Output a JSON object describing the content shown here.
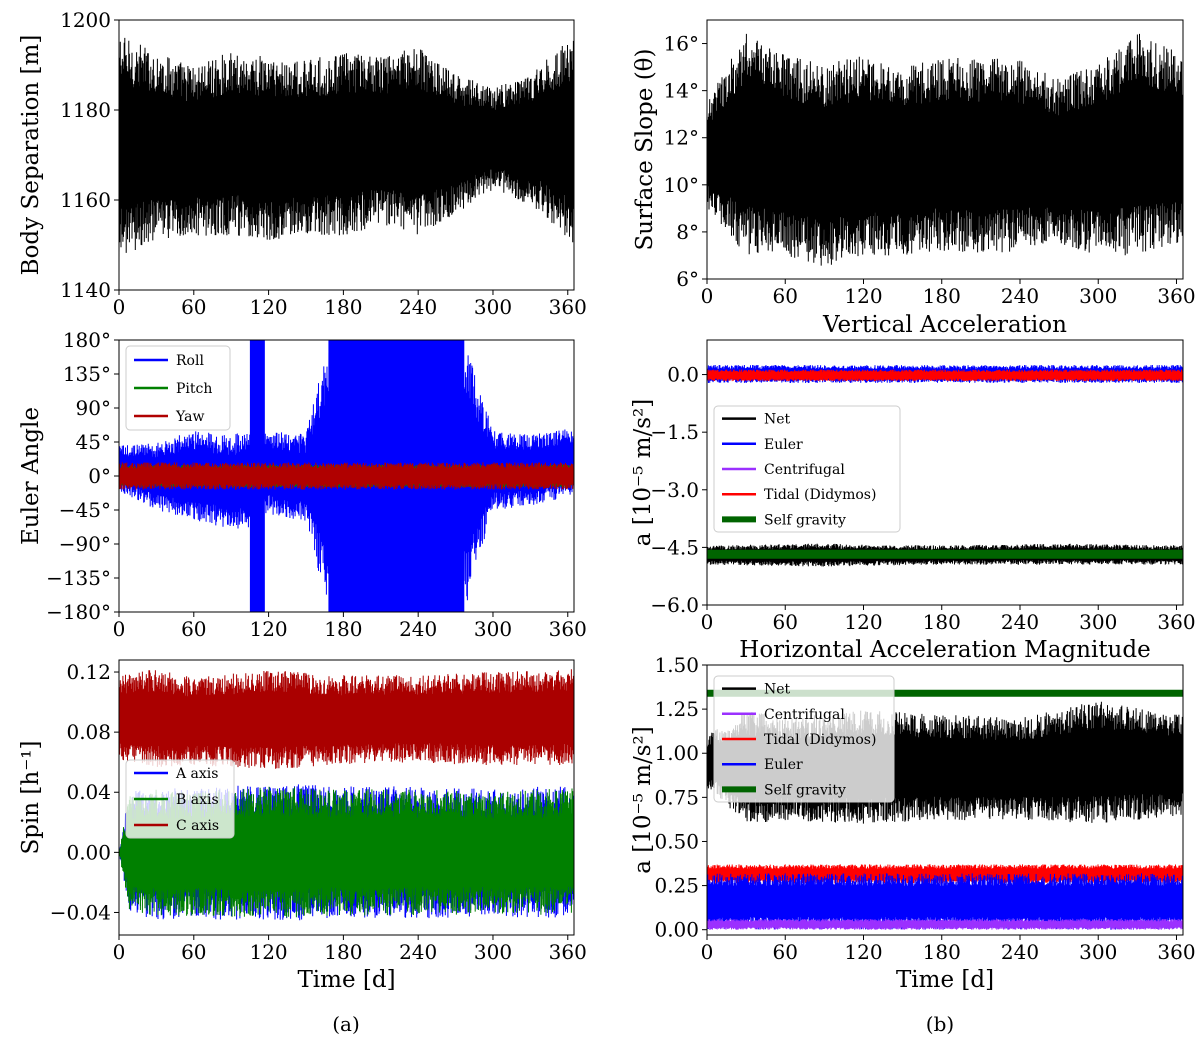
{
  "figure": {
    "captions": [
      "(a)",
      "(b)"
    ]
  },
  "chart_data": [
    {
      "id": "p1",
      "type": "line",
      "panel": "a",
      "title": "",
      "xlabel": "",
      "ylabel": "Body Separation [m]",
      "xlim": [
        0,
        365
      ],
      "ylim": [
        1140,
        1200
      ],
      "xticks": [
        0,
        60,
        120,
        180,
        240,
        300,
        360
      ],
      "xtick_labels": [
        "0",
        "60",
        "120",
        "180",
        "240",
        "300",
        "360"
      ],
      "yticks": [
        1140,
        1160,
        1180,
        1200
      ],
      "ytick_labels": [
        "1140",
        "1160",
        "1180",
        "1200"
      ],
      "legend": null,
      "series": [
        {
          "color": "#000000",
          "style": "band",
          "envelope": {
            "x": [
              0,
              30,
              60,
              90,
              120,
              150,
              180,
              210,
              240,
              270,
              300,
              330,
              365
            ],
            "upper": [
              1197,
              1193,
              1190,
              1193,
              1192,
              1191,
              1193,
              1192,
              1194,
              1188,
              1185,
              1188,
              1197
            ],
            "lower": [
              1147,
              1151,
              1152,
              1152,
              1151,
              1152,
              1152,
              1154,
              1152,
              1157,
              1162,
              1159,
              1150
            ]
          }
        }
      ]
    },
    {
      "id": "p2",
      "type": "line",
      "panel": "b",
      "title": "",
      "xlabel": "",
      "ylabel": "Surface Slope (θ)",
      "xlim": [
        0,
        365
      ],
      "ylim": [
        6,
        17
      ],
      "xticks": [
        0,
        60,
        120,
        180,
        240,
        300,
        360
      ],
      "xtick_labels": [
        "0",
        "60",
        "120",
        "180",
        "240",
        "300",
        "360"
      ],
      "yticks": [
        6,
        8,
        10,
        12,
        14,
        16
      ],
      "ytick_labels": [
        "6°",
        "8°",
        "10°",
        "12°",
        "14°",
        "16°"
      ],
      "legend": null,
      "series": [
        {
          "color": "#000000",
          "style": "band",
          "envelope": {
            "x": [
              0,
              30,
              60,
              90,
              120,
              150,
              180,
              210,
              240,
              270,
              300,
              330,
              365
            ],
            "upper": [
              13.5,
              16.5,
              15.5,
              15.2,
              15.5,
              15.0,
              15.4,
              15.4,
              15.3,
              14.5,
              15.2,
              16.5,
              15.5
            ],
            "lower": [
              9.0,
              7.0,
              7.0,
              6.5,
              7.0,
              7.0,
              7.2,
              7.0,
              7.2,
              7.5,
              7.0,
              7.0,
              7.5
            ]
          }
        }
      ]
    },
    {
      "id": "p3",
      "type": "line",
      "panel": "a",
      "title": "",
      "xlabel": "",
      "ylabel": "Euler Angle",
      "xlim": [
        0,
        365
      ],
      "ylim": [
        -180,
        180
      ],
      "xticks": [
        0,
        60,
        120,
        180,
        240,
        300,
        360
      ],
      "xtick_labels": [
        "0",
        "60",
        "120",
        "180",
        "240",
        "300",
        "360"
      ],
      "yticks": [
        -180,
        -135,
        -90,
        -45,
        0,
        45,
        90,
        135,
        180
      ],
      "ytick_labels": [
        "−180°",
        "−135°",
        "−90°",
        "−45°",
        "0°",
        "45°",
        "90°",
        "135°",
        "180°"
      ],
      "legend": {
        "position": "upper-left",
        "entries": [
          "Roll",
          "Pitch",
          "Yaw"
        ]
      },
      "series": [
        {
          "name": "Roll",
          "color": "#0000ff",
          "style": "band",
          "envelope": {
            "x": [
              0,
              30,
              60,
              90,
              105,
              120,
              150,
              168,
              200,
              240,
              277,
              300,
              330,
              365
            ],
            "upper": [
              40,
              45,
              60,
              55,
              60,
              60,
              55,
              180,
              180,
              180,
              180,
              60,
              55,
              65
            ],
            "lower": [
              -20,
              -45,
              -60,
              -70,
              -70,
              -50,
              -60,
              -180,
              -180,
              -180,
              -180,
              -45,
              -40,
              -25
            ]
          },
          "fills": [
            {
              "x0": 105,
              "x1": 117,
              "y0": -180,
              "y1": 180
            }
          ]
        },
        {
          "name": "Pitch",
          "color": "#008000",
          "style": "band",
          "envelope": {
            "x": [
              0,
              365
            ],
            "upper": [
              15,
              15
            ],
            "lower": [
              -15,
              -15
            ]
          }
        },
        {
          "name": "Yaw",
          "color": "#b00000",
          "style": "band",
          "envelope": {
            "x": [
              0,
              365
            ],
            "upper": [
              18,
              18
            ],
            "lower": [
              -18,
              -18
            ]
          }
        }
      ]
    },
    {
      "id": "p4",
      "type": "line",
      "panel": "b",
      "title": "Vertical Acceleration",
      "xlabel": "",
      "ylabel": "a [10⁻⁵ m/s²]",
      "xlim": [
        0,
        365
      ],
      "ylim": [
        -6.0,
        0.9
      ],
      "xticks": [
        0,
        60,
        120,
        180,
        240,
        300,
        360
      ],
      "xtick_labels": [
        "0",
        "60",
        "120",
        "180",
        "240",
        "300",
        "360"
      ],
      "yticks": [
        -6.0,
        -4.5,
        -3.0,
        -1.5,
        0.0
      ],
      "ytick_labels": [
        "−6.0",
        "−4.5",
        "−3.0",
        "−1.5",
        "0.0"
      ],
      "legend": {
        "position": "center-left",
        "entries": [
          "Net",
          "Euler",
          "Centrifugal",
          "Tidal (Didymos)",
          "Self gravity"
        ]
      },
      "series": [
        {
          "name": "Net",
          "color": "#000000",
          "style": "band",
          "envelope": {
            "x": [
              0,
              90,
              180,
              270,
              365
            ],
            "upper": [
              -4.45,
              -4.4,
              -4.45,
              -4.4,
              -4.45
            ],
            "lower": [
              -4.95,
              -5.0,
              -4.95,
              -4.95,
              -4.95
            ]
          }
        },
        {
          "name": "Euler",
          "color": "#0000ff",
          "style": "band",
          "envelope": {
            "x": [
              0,
              365
            ],
            "upper": [
              0.25,
              0.25
            ],
            "lower": [
              -0.22,
              -0.22
            ]
          }
        },
        {
          "name": "Centrifugal",
          "color": "#9b30ff",
          "style": "band",
          "envelope": {
            "x": [
              0,
              365
            ],
            "upper": [
              0.05,
              0.05
            ],
            "lower": [
              -0.05,
              -0.05
            ]
          }
        },
        {
          "name": "Tidal (Didymos)",
          "color": "#ff0000",
          "style": "band",
          "envelope": {
            "x": [
              0,
              365
            ],
            "upper": [
              0.13,
              0.13
            ],
            "lower": [
              -0.17,
              -0.17
            ]
          }
        },
        {
          "name": "Self gravity",
          "color": "#006400",
          "style": "line",
          "width": 9,
          "x": [
            0,
            365
          ],
          "y": [
            -4.68,
            -4.68
          ]
        }
      ]
    },
    {
      "id": "p5",
      "type": "line",
      "panel": "a",
      "title": "",
      "xlabel": "Time [d]",
      "ylabel": "Spin [h⁻¹]",
      "xlim": [
        0,
        365
      ],
      "ylim": [
        -0.055,
        0.128
      ],
      "xticks": [
        0,
        60,
        120,
        180,
        240,
        300,
        360
      ],
      "xtick_labels": [
        "0",
        "60",
        "120",
        "180",
        "240",
        "300",
        "360"
      ],
      "yticks": [
        -0.04,
        0.0,
        0.04,
        0.08,
        0.12
      ],
      "ytick_labels": [
        "−0.04",
        "0.00",
        "0.04",
        "0.08",
        "0.12"
      ],
      "legend": {
        "position": "center-left",
        "entries": [
          "A axis",
          "B axis",
          "C axis"
        ]
      },
      "series": [
        {
          "name": "C axis",
          "color": "#aa0000",
          "style": "band",
          "envelope": {
            "x": [
              0,
              30,
              60,
              120,
              180,
              240,
              300,
              365
            ],
            "upper": [
              0.118,
              0.122,
              0.116,
              0.122,
              0.118,
              0.118,
              0.12,
              0.122
            ],
            "lower": [
              0.062,
              0.056,
              0.058,
              0.055,
              0.058,
              0.06,
              0.057,
              0.058
            ]
          }
        },
        {
          "name": "A axis",
          "color": "#0000ff",
          "style": "band",
          "envelope": {
            "x": [
              0,
              8,
              30,
              60,
              120,
              180,
              240,
              300,
              365
            ],
            "upper": [
              0.0,
              0.04,
              0.044,
              0.042,
              0.046,
              0.044,
              0.044,
              0.042,
              0.045
            ],
            "lower": [
              0.0,
              -0.04,
              -0.045,
              -0.044,
              -0.046,
              -0.044,
              -0.044,
              -0.043,
              -0.044
            ]
          }
        },
        {
          "name": "B axis",
          "color": "#008000",
          "style": "band",
          "envelope": {
            "x": [
              0,
              8,
              30,
              60,
              120,
              180,
              240,
              300,
              365
            ],
            "upper": [
              0.0,
              0.038,
              0.042,
              0.04,
              0.044,
              0.042,
              0.042,
              0.04,
              0.043
            ],
            "lower": [
              0.0,
              -0.038,
              -0.043,
              -0.042,
              -0.044,
              -0.042,
              -0.042,
              -0.041,
              -0.042
            ]
          }
        }
      ]
    },
    {
      "id": "p6",
      "type": "line",
      "panel": "b",
      "title": "Horizontal Acceleration Magnitude",
      "xlabel": "Time [d]",
      "ylabel": "a [10⁻⁵ m/s²]",
      "xlim": [
        0,
        365
      ],
      "ylim": [
        -0.03,
        1.5
      ],
      "xticks": [
        0,
        60,
        120,
        180,
        240,
        300,
        360
      ],
      "xtick_labels": [
        "0",
        "60",
        "120",
        "180",
        "240",
        "300",
        "360"
      ],
      "yticks": [
        0.0,
        0.25,
        0.5,
        0.75,
        1.0,
        1.25,
        1.5
      ],
      "ytick_labels": [
        "0.00",
        "0.25",
        "0.50",
        "0.75",
        "1.00",
        "1.25",
        "1.50"
      ],
      "legend": {
        "position": "upper-left",
        "entries": [
          "Net",
          "Centrifugal",
          "Tidal (Didymos)",
          "Euler",
          "Self gravity"
        ]
      },
      "series": [
        {
          "name": "Net",
          "color": "#000000",
          "style": "band",
          "envelope": {
            "x": [
              0,
              30,
              60,
              120,
              180,
              240,
              300,
              365
            ],
            "upper": [
              1.1,
              1.25,
              1.2,
              1.25,
              1.22,
              1.2,
              1.3,
              1.22
            ],
            "lower": [
              0.8,
              0.6,
              0.62,
              0.6,
              0.62,
              0.62,
              0.6,
              0.65
            ]
          }
        },
        {
          "name": "Tidal (Didymos)",
          "color": "#ff0000",
          "style": "band",
          "envelope": {
            "x": [
              0,
              365
            ],
            "upper": [
              0.37,
              0.37
            ],
            "lower": [
              0.26,
              0.26
            ]
          }
        },
        {
          "name": "Euler",
          "color": "#0000ff",
          "style": "band",
          "envelope": {
            "x": [
              0,
              365
            ],
            "upper": [
              0.32,
              0.32
            ],
            "lower": [
              0.0,
              0.0
            ]
          }
        },
        {
          "name": "Centrifugal",
          "color": "#9b30ff",
          "style": "band",
          "envelope": {
            "x": [
              0,
              365
            ],
            "upper": [
              0.06,
              0.06
            ],
            "lower": [
              0.0,
              0.0
            ]
          }
        },
        {
          "name": "Self gravity",
          "color": "#006400",
          "style": "line",
          "width": 7,
          "x": [
            0,
            365
          ],
          "y": [
            1.34,
            1.34
          ]
        }
      ]
    }
  ]
}
